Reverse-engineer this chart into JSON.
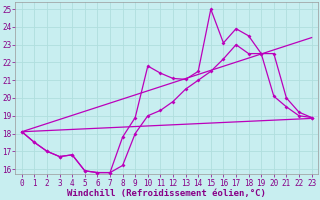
{
  "xlabel": "Windchill (Refroidissement éolien,°C)",
  "bg_color": "#c8eef0",
  "grid_color": "#b0dede",
  "line_color": "#bb00bb",
  "xlim_min": -0.5,
  "xlim_max": 23.5,
  "ylim_min": 15.7,
  "ylim_max": 25.4,
  "xticks": [
    0,
    1,
    2,
    3,
    4,
    5,
    6,
    7,
    8,
    9,
    10,
    11,
    12,
    13,
    14,
    15,
    16,
    17,
    18,
    19,
    20,
    21,
    22,
    23
  ],
  "yticks": [
    16,
    17,
    18,
    19,
    20,
    21,
    22,
    23,
    24,
    25
  ],
  "line1_x": [
    0,
    1,
    2,
    3,
    4,
    5,
    6,
    7,
    8,
    9,
    10,
    11,
    12,
    13,
    14,
    15,
    16,
    17,
    18,
    19,
    20,
    21,
    22,
    23
  ],
  "line1_y": [
    18.1,
    17.5,
    17.0,
    16.7,
    16.8,
    15.9,
    15.8,
    15.8,
    17.8,
    18.9,
    21.8,
    21.4,
    21.1,
    21.05,
    21.5,
    25.0,
    23.1,
    23.9,
    23.5,
    22.5,
    20.1,
    19.5,
    19.0,
    18.9
  ],
  "line2_x": [
    0,
    1,
    2,
    3,
    4,
    5,
    6,
    7,
    8,
    9,
    10,
    11,
    12,
    13,
    14,
    15,
    16,
    17,
    18,
    19,
    20,
    21,
    22,
    23
  ],
  "line2_y": [
    18.1,
    17.5,
    17.0,
    16.7,
    16.8,
    15.9,
    15.8,
    15.8,
    16.2,
    18.0,
    19.0,
    19.3,
    19.8,
    20.5,
    21.0,
    21.5,
    22.2,
    23.0,
    22.5,
    22.5,
    22.5,
    20.0,
    19.2,
    18.9
  ],
  "trend1_x": [
    0,
    23
  ],
  "trend1_y": [
    18.1,
    18.85
  ],
  "trend2_x": [
    0,
    23
  ],
  "trend2_y": [
    18.1,
    23.4
  ],
  "tick_color": "#880088",
  "tick_fontsize": 5.5,
  "xlabel_fontsize": 6.5
}
